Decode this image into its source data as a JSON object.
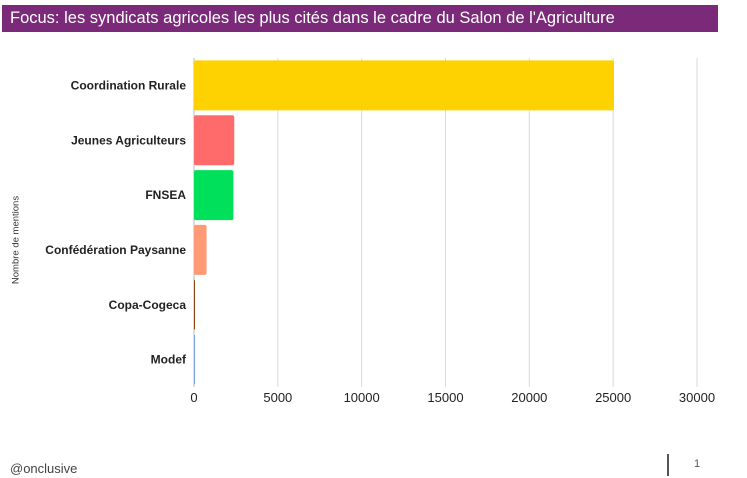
{
  "title": "Focus: les syndicats agricoles les plus cités dans le cadre du Salon de l'Agriculture",
  "footer": {
    "handle": "@onclusive",
    "page": "1"
  },
  "colors": {
    "title_bg": "#7a2a78",
    "grid": "#d9d9d9"
  },
  "chart_data": {
    "type": "bar",
    "orientation": "horizontal",
    "categories": [
      "Coordination Rurale",
      "Jeunes Agriculteurs",
      "FNSEA",
      "Confédération Paysanne",
      "Copa-Cogeca",
      "Modef"
    ],
    "values": [
      25050,
      2400,
      2350,
      750,
      60,
      20
    ],
    "colors": [
      "#fed100",
      "#ff6b6b",
      "#00e05a",
      "#ff9a76",
      "#8b4513",
      "#7aa6d8"
    ],
    "xlim": [
      0,
      30000
    ],
    "xticks": [
      0,
      5000,
      10000,
      15000,
      20000,
      25000,
      30000
    ],
    "ylabel": "Nombre de mentions",
    "xlabel": "",
    "grid": true,
    "legend": "none"
  }
}
